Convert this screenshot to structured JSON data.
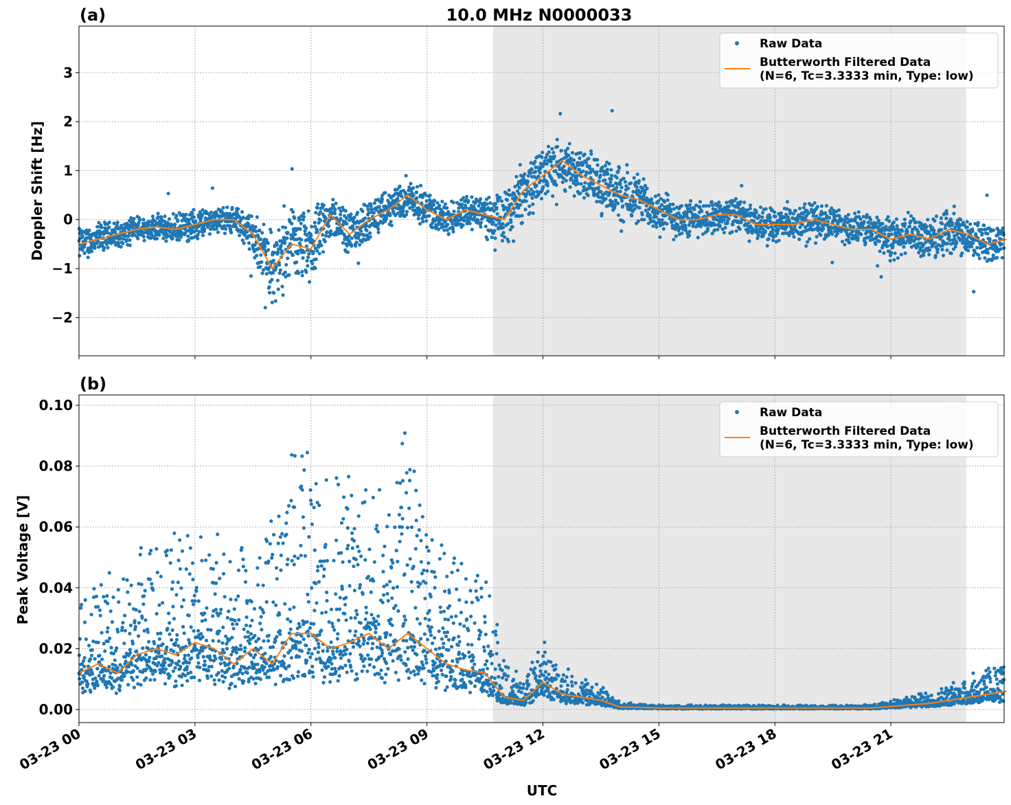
{
  "title": "10.0 MHz N0000033",
  "xlabel": "UTC",
  "chart_data": [
    {
      "type": "scatter+line",
      "panel_label": "(a)",
      "title": "10.0 MHz N0000033",
      "ylabel": "Doppler Shift [Hz]",
      "xlabel": "",
      "xlim_hours": [
        0,
        23.93
      ],
      "ylim": [
        -2.78,
        3.95
      ],
      "yticks": [
        -2,
        -1,
        0,
        1,
        2,
        3
      ],
      "ytick_labels": [
        "−2",
        "−1",
        "0",
        "1",
        "2",
        "3"
      ],
      "grid": true,
      "legend": {
        "placement": "top-right",
        "entries": [
          "Raw Data",
          "Butterworth Filtered Data",
          "(N=6, Tc=3.3333 min, Type: low)"
        ]
      },
      "shaded_interval_hours": [
        10.71,
        22.95
      ],
      "x_step_hours": 0.5,
      "filtered": [
        -0.5,
        -0.4,
        -0.3,
        -0.2,
        -0.15,
        -0.2,
        -0.1,
        0.0,
        0.0,
        -0.3,
        -1.0,
        -0.5,
        -0.6,
        0.1,
        -0.3,
        0.0,
        0.2,
        0.5,
        0.2,
        0.0,
        0.2,
        0.1,
        0.0,
        0.6,
        0.9,
        1.2,
        0.9,
        0.7,
        0.5,
        0.4,
        0.2,
        0.0,
        0.0,
        0.1,
        0.1,
        -0.1,
        -0.1,
        -0.1,
        0.0,
        -0.1,
        -0.2,
        -0.2,
        -0.4,
        -0.3,
        -0.4,
        -0.2,
        -0.3,
        -0.5,
        -0.4
      ],
      "raw_spread": [
        0.4,
        0.4,
        0.3,
        0.3,
        0.3,
        0.35,
        0.4,
        0.3,
        0.3,
        0.5,
        0.9,
        0.8,
        0.9,
        0.5,
        0.5,
        0.5,
        0.4,
        0.5,
        0.4,
        0.4,
        0.4,
        0.5,
        0.6,
        0.7,
        0.6,
        0.6,
        0.6,
        0.7,
        0.8,
        0.6,
        0.5,
        0.5,
        0.4,
        0.4,
        0.4,
        0.4,
        0.4,
        0.4,
        0.5,
        0.4,
        0.4,
        0.4,
        0.5,
        0.5,
        0.5,
        0.6,
        0.5,
        0.4,
        0.4
      ]
    },
    {
      "type": "scatter+line",
      "panel_label": "(b)",
      "ylabel": "Peak Voltage [V]",
      "xlabel": "UTC",
      "xlim_hours": [
        0,
        23.93
      ],
      "ylim": [
        -0.0043,
        0.1034
      ],
      "yticks": [
        0.0,
        0.02,
        0.04,
        0.06,
        0.08,
        0.1
      ],
      "ytick_labels": [
        "0.00",
        "0.02",
        "0.04",
        "0.06",
        "0.08",
        "0.10"
      ],
      "xticks_hours": [
        0,
        3,
        6,
        9,
        12,
        15,
        18,
        21
      ],
      "xtick_labels": [
        "03-23 00",
        "03-23 03",
        "03-23 06",
        "03-23 09",
        "03-23 12",
        "03-23 15",
        "03-23 18",
        "03-23 21"
      ],
      "grid": true,
      "legend": {
        "placement": "top-right",
        "entries": [
          "Raw Data",
          "Butterworth Filtered Data",
          "(N=6, Tc=3.3333 min, Type: low)"
        ]
      },
      "shaded_interval_hours": [
        10.71,
        22.95
      ],
      "x_step_hours": 0.5,
      "filtered": [
        0.012,
        0.015,
        0.012,
        0.018,
        0.02,
        0.018,
        0.022,
        0.02,
        0.015,
        0.02,
        0.015,
        0.025,
        0.025,
        0.02,
        0.022,
        0.025,
        0.02,
        0.025,
        0.02,
        0.015,
        0.013,
        0.012,
        0.004,
        0.003,
        0.009,
        0.005,
        0.004,
        0.003,
        0.0008,
        0.0007,
        0.0005,
        0.0005,
        0.0005,
        0.0005,
        0.0005,
        0.0005,
        0.0005,
        0.0005,
        0.0005,
        0.0005,
        0.0005,
        0.0005,
        0.001,
        0.0015,
        0.002,
        0.003,
        0.004,
        0.005,
        0.006
      ],
      "raw_max": [
        0.035,
        0.04,
        0.035,
        0.045,
        0.05,
        0.055,
        0.055,
        0.05,
        0.05,
        0.045,
        0.06,
        0.075,
        0.07,
        0.065,
        0.07,
        0.065,
        0.06,
        0.09,
        0.055,
        0.05,
        0.045,
        0.04,
        0.015,
        0.008,
        0.02,
        0.012,
        0.009,
        0.007,
        0.002,
        0.0015,
        0.0012,
        0.0012,
        0.0012,
        0.0012,
        0.0012,
        0.0012,
        0.0012,
        0.0012,
        0.0012,
        0.0012,
        0.0012,
        0.0015,
        0.003,
        0.004,
        0.005,
        0.007,
        0.01,
        0.013,
        0.013
      ]
    }
  ]
}
